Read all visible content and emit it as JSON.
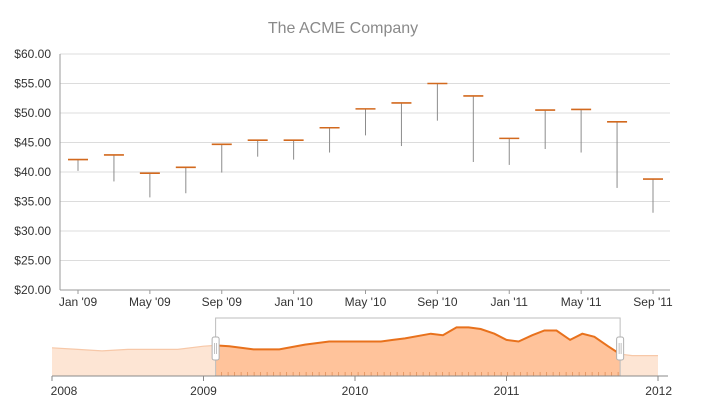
{
  "chart_data": [
    {
      "type": "candlestick",
      "title": "The ACME Company",
      "xlabel": "",
      "ylabel": "",
      "ylim": [
        20,
        60
      ],
      "y_ticks": [
        "$20.00",
        "$25.00",
        "$30.00",
        "$35.00",
        "$40.00",
        "$45.00",
        "$50.00",
        "$55.00",
        "$60.00"
      ],
      "x_ticks": [
        "Jan '09",
        "May '09",
        "Sep '09",
        "Jan '10",
        "May '10",
        "Sep '10",
        "Jan '11",
        "May '11",
        "Sep '11"
      ],
      "grid": true,
      "series": [
        {
          "categories": [
            "Jan '09",
            "Mar '09",
            "May '09",
            "Jul '09",
            "Sep '09",
            "Nov '09",
            "Jan '10",
            "Mar '10",
            "May '10",
            "Jul '10",
            "Sep '10",
            "Nov '10",
            "Jan '11",
            "Mar '11",
            "May '11",
            "Jul '11",
            "Sep '11"
          ],
          "open": [
            42.1,
            42.9,
            39.8,
            40.8,
            44.7,
            45.4,
            45.4,
            47.5,
            50.7,
            51.7,
            55.0,
            52.9,
            45.7,
            50.5,
            50.6,
            48.5,
            38.8
          ],
          "high": [
            42.1,
            42.9,
            39.8,
            40.8,
            44.7,
            45.4,
            45.4,
            47.5,
            50.7,
            51.7,
            55.0,
            52.9,
            45.7,
            50.5,
            50.6,
            48.5,
            38.8
          ],
          "low": [
            40.2,
            38.4,
            35.7,
            36.4,
            39.9,
            42.6,
            42.1,
            43.3,
            46.2,
            44.4,
            48.7,
            41.7,
            41.2,
            43.9,
            43.3,
            37.3,
            33.1
          ],
          "close": [
            42.1,
            42.9,
            39.8,
            40.8,
            44.7,
            45.4,
            45.4,
            47.5,
            50.7,
            51.7,
            55.0,
            52.9,
            45.7,
            50.5,
            50.6,
            48.5,
            38.8
          ]
        }
      ],
      "colors": {
        "open_tick": "#d2691e",
        "wick": "#8c8c8c"
      }
    },
    {
      "type": "area",
      "role": "navigator",
      "x_ticks": [
        "2008",
        "2009",
        "2010",
        "2011",
        "2012"
      ],
      "x_range": [
        2008,
        2012
      ],
      "selection": [
        2009.08,
        2011.75
      ],
      "x": [
        2008.0,
        2008.17,
        2008.33,
        2008.5,
        2008.67,
        2008.83,
        2009.0,
        2009.08,
        2009.17,
        2009.33,
        2009.5,
        2009.67,
        2009.83,
        2010.0,
        2010.17,
        2010.25,
        2010.33,
        2010.5,
        2010.58,
        2010.67,
        2010.75,
        2010.83,
        2010.92,
        2011.0,
        2011.08,
        2011.17,
        2011.25,
        2011.33,
        2011.42,
        2011.5,
        2011.58,
        2011.67,
        2011.75,
        2011.83,
        2012.0
      ],
      "values": [
        43,
        42,
        41,
        42,
        42,
        42,
        44,
        44.5,
        44,
        42,
        42,
        45,
        47,
        47,
        47,
        48,
        49,
        52,
        51,
        56,
        56,
        55,
        52,
        48,
        47,
        51,
        54,
        54,
        48,
        52,
        50,
        44,
        39,
        38,
        38
      ],
      "ylim": [
        25,
        62
      ],
      "colors": {
        "line": "#e8711c",
        "fill_selected": "#ffc39b",
        "fill_outside": "#fde5d4",
        "handle": "#ffffff"
      }
    }
  ]
}
